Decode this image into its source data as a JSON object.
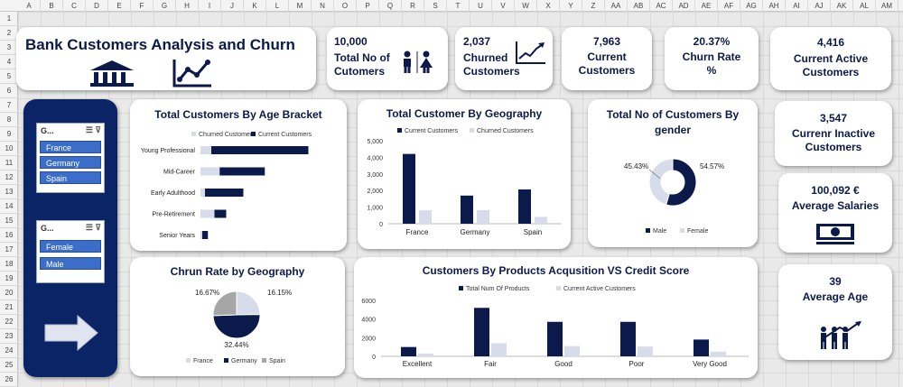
{
  "columns": [
    "A",
    "B",
    "C",
    "D",
    "E",
    "F",
    "G",
    "H",
    "I",
    "J",
    "K",
    "L",
    "M",
    "N",
    "O",
    "P",
    "Q",
    "R",
    "S",
    "T",
    "U",
    "V",
    "W",
    "X",
    "Y",
    "Z",
    "AA",
    "AB",
    "AC",
    "AD",
    "AE",
    "AF",
    "AG",
    "AH",
    "AI",
    "AJ",
    "AK",
    "AL",
    "AM"
  ],
  "rows": [
    "1",
    "2",
    "3",
    "4",
    "5",
    "6",
    "7",
    "8",
    "9",
    "10",
    "11",
    "12",
    "13",
    "14",
    "15",
    "16",
    "17",
    "18",
    "19",
    "20",
    "21",
    "22",
    "23",
    "24",
    "25",
    "26"
  ],
  "title": "Bank Customers Analysis and Churn",
  "kpis": {
    "total_customers": {
      "value": "10,000",
      "label": "Total No of Cutomers"
    },
    "churned": {
      "value": "2,037",
      "label": "Churned Customers"
    },
    "current": {
      "value": "7,963",
      "label": "Current Customers"
    },
    "churn_rate": {
      "value": "20.37%",
      "label": "Churn Rate %"
    },
    "current_active": {
      "value": "4,416",
      "label": "Current Active Customers"
    },
    "inactive": {
      "value": "3,547",
      "label": "Currenr Inactive Customers"
    },
    "salary": {
      "value": "100,092 €",
      "label": "Average Salaries"
    },
    "age": {
      "value": "39",
      "label": "Average Age"
    }
  },
  "slicers": {
    "geography": {
      "header": "G...",
      "items": [
        "France",
        "Germany",
        "Spain"
      ]
    },
    "gender": {
      "header": "G...",
      "items": [
        "Female",
        "Male"
      ]
    }
  },
  "colors": {
    "navy": "#0b1a4a",
    "light": "#d6dcea",
    "gray": "#a6a6a6"
  },
  "chart_data": [
    {
      "id": "age",
      "type": "bar",
      "title": "Total Customers By Age Bracket",
      "categories": [
        "Young Professional",
        "Mid-Career",
        "Early Adulthood",
        "Pre-Retirement",
        "Senior Years"
      ],
      "series": [
        {
          "name": "Churned Customers",
          "values": [
            480,
            850,
            200,
            620,
            80
          ]
        },
        {
          "name": "Current Customers",
          "values": [
            4300,
            2000,
            1700,
            520,
            250
          ]
        }
      ]
    },
    {
      "id": "geo",
      "type": "bar",
      "title": "Total Customer By Geography",
      "categories": [
        "France",
        "Germany",
        "Spain"
      ],
      "series": [
        {
          "name": "Current Customers",
          "values": [
            4204,
            1695,
            2064
          ]
        },
        {
          "name": "Churned Customers",
          "values": [
            810,
            814,
            413
          ]
        }
      ],
      "y_ticks": [
        "0",
        "1,000",
        "2,000",
        "3,000",
        "4,000",
        "5,000"
      ],
      "ylim": [
        0,
        5000
      ]
    },
    {
      "id": "gender",
      "type": "pie",
      "title": "Total No of Customers By gender",
      "categories": [
        "Male",
        "Female"
      ],
      "values": [
        54.57,
        45.43
      ],
      "labels": [
        "54.57%",
        "45.43%"
      ]
    },
    {
      "id": "churn_geo",
      "type": "pie",
      "title": "Chrun Rate by Geography",
      "categories": [
        "France",
        "Germany",
        "Spain"
      ],
      "values": [
        16.15,
        32.44,
        16.67
      ],
      "labels": [
        "16.15%",
        "32.44%",
        "16.67%"
      ]
    },
    {
      "id": "products",
      "type": "bar",
      "title": "Customers By Products Acqusition VS Credit Score",
      "categories": [
        "Excellent",
        "Fair",
        "Good",
        "Poor",
        "Very Good"
      ],
      "series": [
        {
          "name": "Total Num Of Products",
          "values": [
            1000,
            5200,
            3700,
            3700,
            1800
          ]
        },
        {
          "name": "Current Active Customers",
          "values": [
            300,
            1400,
            1100,
            1050,
            500
          ]
        }
      ],
      "y_ticks": [
        "0",
        "2000",
        "4000",
        "6000"
      ],
      "ylim": [
        0,
        6000
      ]
    }
  ]
}
